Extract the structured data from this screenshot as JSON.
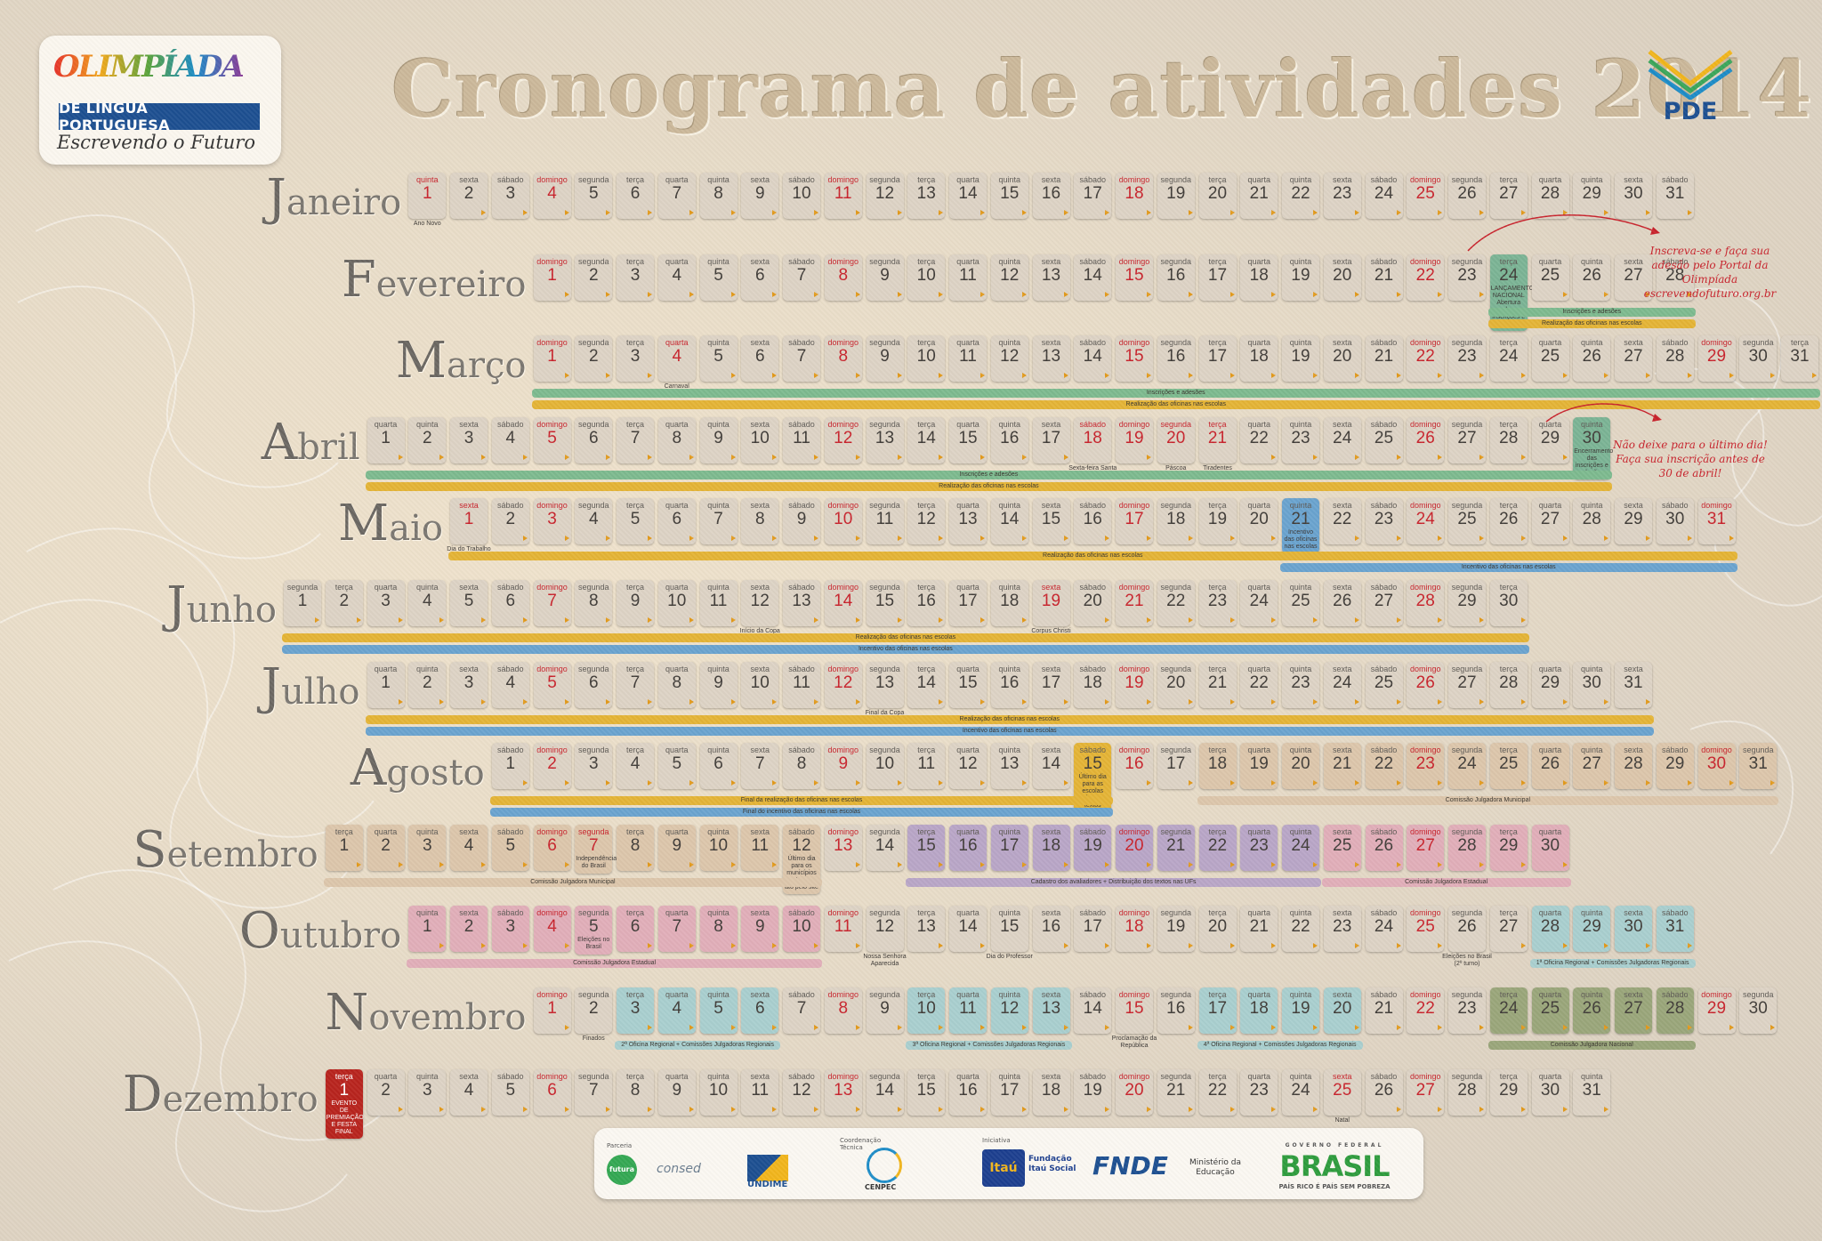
{
  "title": "Cronograma de atividades 2014",
  "logo": {
    "word": "OLIMPÍADA",
    "band": "DE LÍNGUA PORTUGUESA",
    "subtitle": "Escrevendo o Futuro",
    "icon": "olimpiada-logo-icon"
  },
  "pde": {
    "label": "PDE",
    "icon": "pde-book-icon"
  },
  "months": [
    {
      "name": "Janeiro",
      "start": 3,
      "days": 31,
      "notes": {
        "1": "Ano Novo"
      },
      "holidays": [
        1
      ],
      "bars": []
    },
    {
      "name": "Fevereiro",
      "start": 6,
      "days": 28,
      "notes": {
        "24": "LANÇAMENTO NACIONAL Abertura das inscrições e adesões"
      },
      "holidays": [],
      "highlights": [
        {
          "from": 24,
          "to": 24,
          "color": "#7bb495"
        }
      ],
      "bars": [
        {
          "label": "Inscrições e adesões",
          "from": 24,
          "to": 28,
          "color": "#7dba8f",
          "row": 0
        },
        {
          "label": "Realização das oficinas nas escolas",
          "from": 24,
          "to": 28,
          "color": "#e4b436",
          "row": 1
        }
      ]
    },
    {
      "name": "Março",
      "start": 6,
      "days": 31,
      "notes": {
        "4": "Carnaval"
      },
      "holidays": [
        4
      ],
      "bars": [
        {
          "label": "Inscrições e adesões",
          "from": 1,
          "to": 31,
          "color": "#7dba8f",
          "row": 0
        },
        {
          "label": "Realização das oficinas nas escolas",
          "from": 1,
          "to": 31,
          "color": "#e4b436",
          "row": 1
        }
      ]
    },
    {
      "name": "Abril",
      "start": 2,
      "days": 30,
      "notes": {
        "18": "Sexta-feira Santa",
        "20": "Páscoa",
        "21": "Tiradentes",
        "30": "Encerramento das inscrições e adesões"
      },
      "holidays": [
        18,
        20,
        21
      ],
      "highlights": [
        {
          "from": 30,
          "to": 30,
          "color": "#7bb495"
        }
      ],
      "bars": [
        {
          "label": "Inscrições e adesões",
          "from": 1,
          "to": 30,
          "color": "#7dba8f",
          "row": 0
        },
        {
          "label": "Realização das oficinas nas escolas",
          "from": 1,
          "to": 30,
          "color": "#e4b436",
          "row": 1
        }
      ]
    },
    {
      "name": "Maio",
      "start": 4,
      "days": 31,
      "notes": {
        "1": "Dia do Trabalho",
        "21": "Incentivo das oficinas nas escolas"
      },
      "holidays": [
        1
      ],
      "highlights": [
        {
          "from": 21,
          "to": 21,
          "color": "#6aa3cf"
        }
      ],
      "bars": [
        {
          "label": "Realização das oficinas nas escolas",
          "from": 1,
          "to": 31,
          "color": "#e4b436",
          "row": 0
        },
        {
          "label": "Incentivo das oficinas nas escolas",
          "from": 21,
          "to": 31,
          "color": "#6aa3cf",
          "row": 1
        }
      ]
    },
    {
      "name": "Junho",
      "start": 0,
      "days": 30,
      "notes": {
        "12": "Início da Copa",
        "19": "Corpus Christi"
      },
      "holidays": [
        19
      ],
      "bars": [
        {
          "label": "Realização das oficinas nas escolas",
          "from": 1,
          "to": 30,
          "color": "#e4b436",
          "row": 0
        },
        {
          "label": "Incentivo das oficinas nas escolas",
          "from": 1,
          "to": 30,
          "color": "#6aa3cf",
          "row": 1
        }
      ]
    },
    {
      "name": "Julho",
      "start": 2,
      "days": 31,
      "notes": {
        "13": "Final da Copa"
      },
      "holidays": [],
      "bars": [
        {
          "label": "Realização das oficinas nas escolas",
          "from": 1,
          "to": 31,
          "color": "#e4b436",
          "row": 0
        },
        {
          "label": "Incentivo das oficinas nas escolas",
          "from": 1,
          "to": 31,
          "color": "#6aa3cf",
          "row": 1
        }
      ]
    },
    {
      "name": "Agosto",
      "start": 5,
      "days": 31,
      "notes": {
        "15": "Último dia para as escolas enviarem os textos"
      },
      "holidays": [],
      "highlights": [
        {
          "from": 15,
          "to": 15,
          "color": "#e4b436"
        },
        {
          "from": 18,
          "to": 31,
          "color": "#dcc6ab"
        }
      ],
      "bars": [
        {
          "label": "Final da realização das oficinas nas escolas",
          "from": 1,
          "to": 15,
          "color": "#e4b436",
          "row": 0
        },
        {
          "label": "Final do incentivo das oficinas nas escolas",
          "from": 1,
          "to": 15,
          "color": "#6aa3cf",
          "row": 1
        },
        {
          "label": "Comissão Julgadora Municipal",
          "from": 18,
          "to": 31,
          "color": "#dcc6ab",
          "row": 0
        }
      ]
    },
    {
      "name": "Setembro",
      "start": 1,
      "days": 30,
      "notes": {
        "7": "Independência do Brasil",
        "12": "Último dia para os municípios postarem o ato pelo site"
      },
      "holidays": [
        7
      ],
      "highlights": [
        {
          "from": 1,
          "to": 12,
          "color": "#dcc6ab"
        },
        {
          "from": 15,
          "to": 24,
          "color": "#b9a6c7"
        },
        {
          "from": 25,
          "to": 30,
          "color": "#e1aeb9"
        }
      ],
      "bars": [
        {
          "label": "Comissão Julgadora Municipal",
          "from": 1,
          "to": 12,
          "color": "#dcc6ab",
          "row": 0
        },
        {
          "label": "Cadastro dos avaliadores + Distribuição dos textos nas UFs",
          "from": 15,
          "to": 24,
          "color": "#b9a6c7",
          "row": 0
        },
        {
          "label": "Comissão Julgadora Estadual",
          "from": 25,
          "to": 30,
          "color": "#e1aeb9",
          "row": 0
        }
      ]
    },
    {
      "name": "Outubro",
      "start": 3,
      "days": 31,
      "notes": {
        "5": "Eleições no Brasil",
        "12": "Nossa Senhora Aparecida",
        "15": "Dia do Professor",
        "26": "Eleições no Brasil (2º turno)"
      },
      "holidays": [],
      "highlights": [
        {
          "from": 1,
          "to": 10,
          "color": "#e1aeb9"
        },
        {
          "from": 28,
          "to": 31,
          "color": "#a9cfcf"
        }
      ],
      "bars": [
        {
          "label": "Comissão Julgadora Estadual",
          "from": 1,
          "to": 10,
          "color": "#e1aeb9",
          "row": 0
        },
        {
          "label": "1ª Oficina Regional + Comissões Julgadoras Regionais",
          "from": 28,
          "to": 31,
          "color": "#a9cfcf",
          "row": 0
        }
      ]
    },
    {
      "name": "Novembro",
      "start": 6,
      "days": 30,
      "notes": {
        "2": "Finados",
        "15": "Proclamação da República"
      },
      "holidays": [],
      "highlights": [
        {
          "from": 3,
          "to": 6,
          "color": "#a9cfcf"
        },
        {
          "from": 10,
          "to": 13,
          "color": "#a9cfcf"
        },
        {
          "from": 17,
          "to": 20,
          "color": "#a9cfcf"
        },
        {
          "from": 24,
          "to": 28,
          "color": "#9aa67a"
        }
      ],
      "bars": [
        {
          "label": "2ª Oficina Regional + Comissões Julgadoras Regionais",
          "from": 3,
          "to": 6,
          "color": "#a9cfcf",
          "row": 0
        },
        {
          "label": "3ª Oficina Regional + Comissões Julgadoras Regionais",
          "from": 10,
          "to": 13,
          "color": "#a9cfcf",
          "row": 0
        },
        {
          "label": "4ª Oficina Regional + Comissões Julgadoras Regionais",
          "from": 17,
          "to": 20,
          "color": "#a9cfcf",
          "row": 0
        },
        {
          "label": "Comissão Julgadora Nacional",
          "from": 24,
          "to": 28,
          "color": "#9aa67a",
          "row": 0
        }
      ]
    },
    {
      "name": "Dezembro",
      "start": 1,
      "days": 31,
      "notes": {
        "1": "EVENTO DE PREMIAÇÃO E FESTA FINAL",
        "25": "Natal"
      },
      "holidays": [
        25
      ],
      "highlights": [
        {
          "from": 1,
          "to": 1,
          "color": "#b8241e",
          "text": "#ffffff"
        }
      ],
      "bars": []
    }
  ],
  "weekdays": [
    "segunda",
    "terça",
    "quarta",
    "quinta",
    "sexta",
    "sábado",
    "domingo"
  ],
  "side_notes": [
    {
      "text": "Inscreva-se e faça sua adesão pelo Portal da Olimpíada escrevendofuturo.org.br"
    },
    {
      "text": "Não deixe para o último dia! Faça sua inscrição antes de 30 de abril!"
    }
  ],
  "footer": {
    "parceria_label": "Parceria",
    "coordenacao_label": "Coordenação Técnica",
    "iniciativa_label": "Iniciativa",
    "logos": [
      "futura",
      "consed",
      "UNDIME",
      "CENPEC",
      "Itaú",
      "Fundação Itaú Social",
      "FNDE",
      "Ministério da Educação",
      "BRASIL",
      "GOVERNO FEDERAL",
      "PAÍS RICO É PAÍS SEM POBREZA"
    ]
  },
  "colors": {
    "sunday": "#c8232c",
    "cell": "#ddd3c5",
    "title": "#cbb89a",
    "accent": "#1d4f91"
  }
}
